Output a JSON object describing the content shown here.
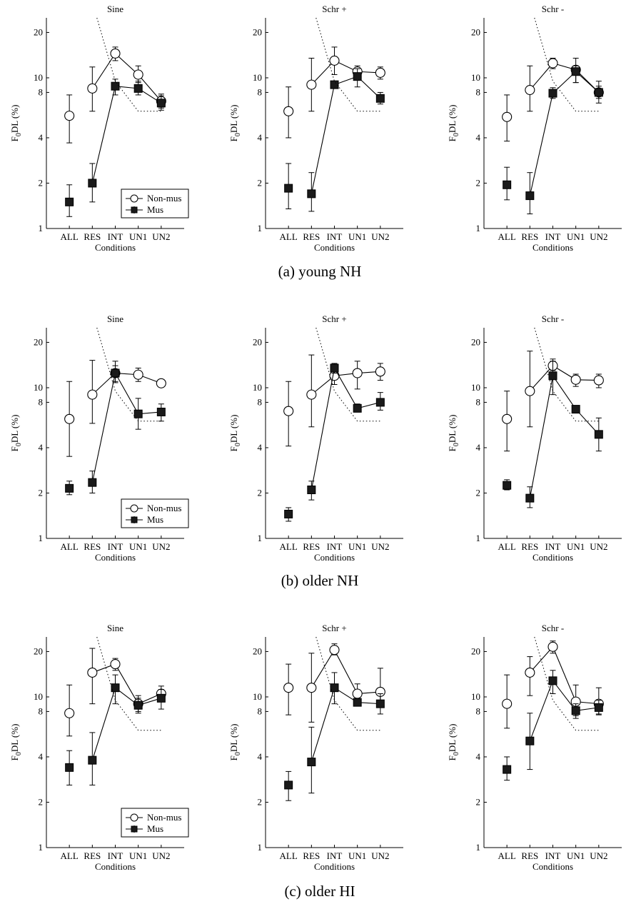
{
  "figure": {
    "captions": [
      "(a)  young NH",
      "(b)  older NH",
      "(c)  older HI"
    ],
    "legend": [
      "Non-mus",
      "Mus"
    ],
    "xlabel": "Conditions",
    "ylabel_main": "F",
    "ylabel_sub": "0",
    "ylabel_rest": "DL (%)"
  },
  "chart_data": [
    {
      "type": "line",
      "group": "young NH",
      "title": "Sine",
      "xlabel": "Conditions",
      "ylabel": "F0DL (%)",
      "yscale": "log",
      "ylim": [
        1,
        25
      ],
      "yticks": [
        1,
        2,
        4,
        8,
        10,
        20
      ],
      "categories": [
        "ALL",
        "RES",
        "INT",
        "UN1",
        "UN2"
      ],
      "legend_position": "bottom-right",
      "series": [
        {
          "name": "Non-mus",
          "marker": "open-circle",
          "values": [
            5.6,
            8.5,
            14.5,
            10.5,
            7.0
          ],
          "err_low": [
            3.7,
            6.0,
            13.0,
            9.3,
            6.3
          ],
          "err_high": [
            7.7,
            11.8,
            16.0,
            12.0,
            7.8
          ],
          "connect_from": 1
        },
        {
          "name": "Mus",
          "marker": "filled-square",
          "values": [
            1.5,
            2.0,
            8.8,
            8.5,
            6.8
          ],
          "err_low": [
            1.2,
            1.5,
            7.7,
            7.7,
            6.1
          ],
          "err_high": [
            1.95,
            2.7,
            9.8,
            9.5,
            7.6
          ],
          "connect_from": 1
        },
        {
          "name": "reference",
          "style": "dotted",
          "x": [
            1.2,
            2.0,
            3.0,
            4.0
          ],
          "values": [
            25,
            9.5,
            6.0,
            6.0
          ]
        }
      ]
    },
    {
      "type": "line",
      "group": "young NH",
      "title": "Schr +",
      "xlabel": "Conditions",
      "ylabel": "F0DL (%)",
      "yscale": "log",
      "ylim": [
        1,
        25
      ],
      "yticks": [
        1,
        2,
        4,
        8,
        10,
        20
      ],
      "categories": [
        "ALL",
        "RES",
        "INT",
        "UN1",
        "UN2"
      ],
      "series": [
        {
          "name": "Non-mus",
          "marker": "open-circle",
          "values": [
            6.0,
            9.0,
            13.0,
            11.0,
            10.8
          ],
          "err_low": [
            4.0,
            6.0,
            10.5,
            10.0,
            9.8
          ],
          "err_high": [
            8.7,
            13.5,
            16.0,
            12.0,
            11.8
          ],
          "connect_from": 1
        },
        {
          "name": "Mus",
          "marker": "filled-square",
          "values": [
            1.85,
            1.7,
            9.0,
            10.2,
            7.3
          ],
          "err_low": [
            1.35,
            1.3,
            8.6,
            8.7,
            6.7
          ],
          "err_high": [
            2.7,
            2.35,
            9.4,
            11.5,
            8.0
          ],
          "connect_from": 1
        },
        {
          "name": "reference",
          "style": "dotted",
          "x": [
            1.2,
            2.0,
            3.0,
            4.0
          ],
          "values": [
            25,
            9.5,
            6.0,
            6.0
          ]
        }
      ]
    },
    {
      "type": "line",
      "group": "young NH",
      "title": "Schr -",
      "xlabel": "Conditions",
      "ylabel": "F0DL (%)",
      "yscale": "log",
      "ylim": [
        1,
        25
      ],
      "yticks": [
        1,
        2,
        4,
        8,
        10,
        20
      ],
      "categories": [
        "ALL",
        "RES",
        "INT",
        "UN1",
        "UN2"
      ],
      "series": [
        {
          "name": "Non-mus",
          "marker": "open-circle",
          "values": [
            5.5,
            8.3,
            12.5,
            11.3,
            8.0
          ],
          "err_low": [
            3.8,
            6.0,
            11.5,
            9.3,
            7.3
          ],
          "err_high": [
            7.7,
            12.0,
            13.5,
            13.5,
            8.8
          ],
          "connect_from": 1
        },
        {
          "name": "Mus",
          "marker": "filled-square",
          "values": [
            1.95,
            1.65,
            7.9,
            11.0,
            8.0
          ],
          "err_low": [
            1.55,
            1.25,
            7.3,
            9.3,
            6.8
          ],
          "err_high": [
            2.55,
            2.35,
            8.6,
            12.0,
            9.5
          ],
          "connect_from": 1
        },
        {
          "name": "reference",
          "style": "dotted",
          "x": [
            1.2,
            2.0,
            3.0,
            4.0
          ],
          "values": [
            25,
            9.5,
            6.0,
            6.0
          ]
        }
      ]
    },
    {
      "type": "line",
      "group": "older NH",
      "title": "Sine",
      "xlabel": "Conditions",
      "ylabel": "F0DL (%)",
      "yscale": "log",
      "ylim": [
        1,
        25
      ],
      "yticks": [
        1,
        2,
        4,
        8,
        10,
        20
      ],
      "categories": [
        "ALL",
        "RES",
        "INT",
        "UN1",
        "UN2"
      ],
      "legend_position": "bottom-right",
      "series": [
        {
          "name": "Non-mus",
          "marker": "open-circle",
          "values": [
            6.2,
            9.0,
            12.5,
            12.2,
            10.7
          ],
          "err_low": [
            3.5,
            5.8,
            11.0,
            11.0,
            10.2
          ],
          "err_high": [
            11.0,
            15.2,
            15.0,
            13.5,
            11.2
          ],
          "connect_from": 1
        },
        {
          "name": "Mus",
          "marker": "filled-square",
          "values": [
            2.15,
            2.35,
            12.5,
            6.7,
            6.9
          ],
          "err_low": [
            1.95,
            2.0,
            10.8,
            5.3,
            6.0
          ],
          "err_high": [
            2.4,
            2.8,
            14.0,
            8.5,
            7.8
          ],
          "connect_from": 1
        },
        {
          "name": "reference",
          "style": "dotted",
          "x": [
            1.2,
            2.0,
            3.0,
            4.0
          ],
          "values": [
            25,
            9.5,
            6.0,
            6.0
          ]
        }
      ]
    },
    {
      "type": "line",
      "group": "older NH",
      "title": "Schr +",
      "xlabel": "Conditions",
      "ylabel": "F0DL (%)",
      "yscale": "log",
      "ylim": [
        1,
        25
      ],
      "yticks": [
        1,
        2,
        4,
        8,
        10,
        20
      ],
      "categories": [
        "ALL",
        "RES",
        "INT",
        "UN1",
        "UN2"
      ],
      "series": [
        {
          "name": "Non-mus",
          "marker": "open-circle",
          "values": [
            7.0,
            9.0,
            12.0,
            12.5,
            12.8
          ],
          "err_low": [
            4.1,
            5.5,
            10.5,
            9.8,
            11.2
          ],
          "err_high": [
            11.0,
            16.5,
            14.0,
            15.0,
            14.5
          ],
          "connect_from": 1
        },
        {
          "name": "Mus",
          "marker": "filled-square",
          "values": [
            1.45,
            2.1,
            13.5,
            7.3,
            8.0
          ],
          "err_low": [
            1.3,
            1.8,
            12.5,
            6.9,
            7.1
          ],
          "err_high": [
            1.6,
            2.4,
            14.5,
            7.8,
            9.3
          ],
          "connect_from": 1
        },
        {
          "name": "reference",
          "style": "dotted",
          "x": [
            1.2,
            2.0,
            3.0,
            4.0
          ],
          "values": [
            25,
            9.5,
            6.0,
            6.0
          ]
        }
      ]
    },
    {
      "type": "line",
      "group": "older NH",
      "title": "Schr -",
      "xlabel": "Conditions",
      "ylabel": "F0DL (%)",
      "yscale": "log",
      "ylim": [
        1,
        25
      ],
      "yticks": [
        1,
        2,
        4,
        8,
        10,
        20
      ],
      "categories": [
        "ALL",
        "RES",
        "INT",
        "UN1",
        "UN2"
      ],
      "series": [
        {
          "name": "Non-mus",
          "marker": "open-circle",
          "values": [
            6.2,
            9.5,
            14.0,
            11.3,
            11.2
          ],
          "err_low": [
            3.8,
            5.5,
            13.0,
            10.2,
            10.0
          ],
          "err_high": [
            9.5,
            17.5,
            15.5,
            12.3,
            12.3
          ],
          "connect_from": 1
        },
        {
          "name": "Mus",
          "marker": "filled-square",
          "values": [
            2.25,
            1.85,
            12.0,
            7.2,
            4.9
          ],
          "err_low": [
            2.1,
            1.6,
            9.0,
            7.2,
            3.8
          ],
          "err_high": [
            2.45,
            2.2,
            15.0,
            7.2,
            6.3
          ],
          "connect_from": 1
        },
        {
          "name": "reference",
          "style": "dotted",
          "x": [
            1.2,
            2.0,
            3.0,
            4.0
          ],
          "values": [
            25,
            9.5,
            6.0,
            6.0
          ]
        }
      ]
    },
    {
      "type": "line",
      "group": "older HI",
      "title": "Sine",
      "xlabel": "Conditions",
      "ylabel": "F0DL (%)",
      "yscale": "log",
      "ylim": [
        1,
        25
      ],
      "yticks": [
        1,
        2,
        4,
        8,
        10,
        20
      ],
      "categories": [
        "ALL",
        "RES",
        "INT",
        "UN1",
        "UN2"
      ],
      "legend_position": "bottom-right",
      "series": [
        {
          "name": "Non-mus",
          "marker": "open-circle",
          "values": [
            7.8,
            14.5,
            16.5,
            9.0,
            10.5
          ],
          "err_low": [
            5.5,
            9.0,
            15.0,
            8.0,
            9.5
          ],
          "err_high": [
            12.0,
            21.0,
            18.0,
            10.2,
            11.8
          ],
          "connect_from": 1
        },
        {
          "name": "Mus",
          "marker": "filled-square",
          "values": [
            3.4,
            3.8,
            11.5,
            8.8,
            9.8
          ],
          "err_low": [
            2.6,
            2.6,
            9.0,
            7.8,
            8.3
          ],
          "err_high": [
            4.4,
            5.8,
            14.0,
            9.8,
            11.2
          ],
          "connect_from": 1
        },
        {
          "name": "reference",
          "style": "dotted",
          "x": [
            1.2,
            2.0,
            3.0,
            4.0
          ],
          "values": [
            25,
            9.5,
            6.0,
            6.0
          ]
        }
      ]
    },
    {
      "type": "line",
      "group": "older HI",
      "title": "Schr +",
      "xlabel": "Conditions",
      "ylabel": "F0DL (%)",
      "yscale": "log",
      "ylim": [
        1,
        25
      ],
      "yticks": [
        1,
        2,
        4,
        8,
        10,
        20
      ],
      "categories": [
        "ALL",
        "RES",
        "INT",
        "UN1",
        "UN2"
      ],
      "series": [
        {
          "name": "Non-mus",
          "marker": "open-circle",
          "values": [
            11.5,
            11.5,
            20.5,
            10.5,
            10.8
          ],
          "err_low": [
            7.6,
            6.8,
            19.0,
            9.0,
            8.5
          ],
          "err_high": [
            16.5,
            19.5,
            22.5,
            12.2,
            15.5
          ],
          "connect_from": 1
        },
        {
          "name": "Mus",
          "marker": "filled-square",
          "values": [
            2.6,
            3.7,
            11.5,
            9.2,
            9.0
          ],
          "err_low": [
            2.05,
            2.3,
            9.0,
            8.7,
            7.7
          ],
          "err_high": [
            3.2,
            6.3,
            14.5,
            9.8,
            10.5
          ],
          "connect_from": 1
        },
        {
          "name": "reference",
          "style": "dotted",
          "x": [
            1.2,
            2.0,
            3.0,
            4.0
          ],
          "values": [
            25,
            9.5,
            6.0,
            6.0
          ]
        }
      ]
    },
    {
      "type": "line",
      "group": "older HI",
      "title": "Schr -",
      "xlabel": "Conditions",
      "ylabel": "F0DL (%)",
      "yscale": "log",
      "ylim": [
        1,
        25
      ],
      "yticks": [
        1,
        2,
        4,
        8,
        10,
        20
      ],
      "categories": [
        "ALL",
        "RES",
        "INT",
        "UN1",
        "UN2"
      ],
      "series": [
        {
          "name": "Non-mus",
          "marker": "open-circle",
          "values": [
            9.0,
            14.5,
            21.5,
            9.3,
            9.0
          ],
          "err_low": [
            6.2,
            10.2,
            19.5,
            7.5,
            7.6
          ],
          "err_high": [
            14.0,
            18.5,
            23.5,
            12.0,
            11.5
          ],
          "connect_from": 1
        },
        {
          "name": "Mus",
          "marker": "filled-square",
          "values": [
            3.3,
            5.1,
            12.8,
            8.1,
            8.5
          ],
          "err_low": [
            2.8,
            3.3,
            10.5,
            7.2,
            7.7
          ],
          "err_high": [
            4.0,
            7.8,
            15.0,
            9.0,
            9.5
          ],
          "connect_from": 1
        },
        {
          "name": "reference",
          "style": "dotted",
          "x": [
            1.2,
            2.0,
            3.0,
            4.0
          ],
          "values": [
            25,
            9.5,
            6.0,
            6.0
          ]
        }
      ]
    }
  ]
}
